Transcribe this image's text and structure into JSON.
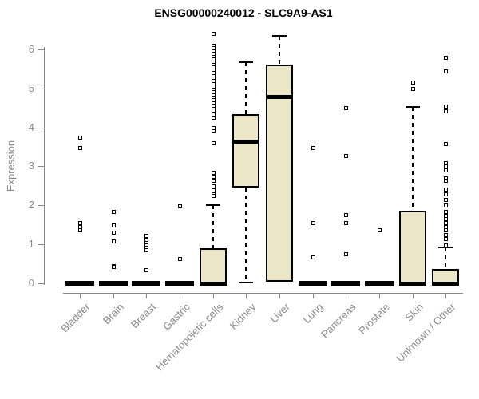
{
  "chart_data": {
    "type": "boxplot",
    "title": "ENSG00000240012 - SLC9A9-AS1",
    "ylabel": "Expression",
    "ylim": [
      0,
      6.5
    ],
    "yticks": [
      0,
      1,
      2,
      3,
      4,
      5,
      6
    ],
    "grid": false,
    "legend": "none",
    "categories": [
      "Bladder",
      "Brain",
      "Breast",
      "Gastric",
      "Hematopoietic cells",
      "Kidney",
      "Liver",
      "Lung",
      "Pancreas",
      "Prostate",
      "Skin",
      "Unknown / Other"
    ],
    "colors": {
      "box_fill": "#ece7c9",
      "line": "#000000",
      "axis": "#8a8a8a",
      "title": "#000000",
      "background": "#ffffff"
    },
    "series": [
      {
        "category": "Bladder",
        "q1": 0,
        "median": 0,
        "q3": 0,
        "whisker_low": null,
        "whisker_high": null,
        "outliers": [
          3.75,
          3.48,
          1.55,
          1.45,
          1.38
        ]
      },
      {
        "category": "Brain",
        "q1": 0,
        "median": 0,
        "q3": 0,
        "whisker_low": null,
        "whisker_high": null,
        "outliers": [
          1.84,
          1.5,
          1.31,
          1.08,
          0.46,
          0.42
        ]
      },
      {
        "category": "Breast",
        "q1": 0,
        "median": 0,
        "q3": 0,
        "whisker_low": null,
        "whisker_high": null,
        "outliers": [
          1.22,
          1.12,
          1.05,
          0.98,
          0.92,
          0.85,
          0.34
        ]
      },
      {
        "category": "Gastric",
        "q1": 0,
        "median": 0,
        "q3": 0,
        "whisker_low": null,
        "whisker_high": null,
        "outliers": [
          1.98,
          0.63
        ]
      },
      {
        "category": "Hematopoietic cells",
        "q1": 0,
        "median": 0,
        "q3": 0.9,
        "whisker_low": null,
        "whisker_high": 2.0,
        "outliers": [
          6.4,
          6.1,
          6.03,
          5.96,
          5.89,
          5.82,
          5.75,
          5.68,
          5.61,
          5.54,
          5.47,
          5.4,
          5.33,
          5.26,
          5.19,
          5.12,
          5.05,
          4.98,
          4.91,
          4.84,
          4.77,
          4.7,
          4.63,
          4.56,
          4.49,
          4.45,
          4.35,
          4.25,
          4.0,
          3.9,
          3.6,
          2.85,
          2.75,
          2.65,
          2.5,
          2.4,
          2.3,
          2.25
        ]
      },
      {
        "category": "Kidney",
        "q1": 2.45,
        "median": 3.65,
        "q3": 4.35,
        "whisker_low": 0.03,
        "whisker_high": 5.67,
        "outliers": []
      },
      {
        "category": "Liver",
        "q1": 0.05,
        "median": 4.8,
        "q3": 5.6,
        "whisker_low": null,
        "whisker_high": 6.35,
        "outliers": []
      },
      {
        "category": "Lung",
        "q1": 0,
        "median": 0,
        "q3": 0,
        "whisker_low": null,
        "whisker_high": null,
        "outliers": [
          3.49,
          1.55,
          0.67
        ]
      },
      {
        "category": "Pancreas",
        "q1": 0,
        "median": 0,
        "q3": 0,
        "whisker_low": null,
        "whisker_high": null,
        "outliers": [
          4.5,
          3.27,
          1.76,
          1.55,
          0.76
        ]
      },
      {
        "category": "Prostate",
        "q1": 0,
        "median": 0,
        "q3": 0,
        "whisker_low": null,
        "whisker_high": null,
        "outliers": [
          1.38
        ]
      },
      {
        "category": "Skin",
        "q1": 0,
        "median": 0,
        "q3": 1.87,
        "whisker_low": null,
        "whisker_high": 4.52,
        "outliers": [
          5.15,
          5.0
        ]
      },
      {
        "category": "Unknown / Other",
        "q1": 0,
        "median": 0,
        "q3": 0.37,
        "whisker_low": null,
        "whisker_high": 0.92,
        "outliers": [
          5.79,
          5.45,
          4.55,
          4.42,
          3.58,
          3.1,
          3.0,
          2.9,
          2.7,
          2.65,
          2.42,
          2.3,
          2.15,
          2.0,
          1.85,
          1.75,
          1.65,
          1.55,
          1.45,
          1.38,
          1.25,
          1.15,
          0.98
        ]
      }
    ]
  }
}
